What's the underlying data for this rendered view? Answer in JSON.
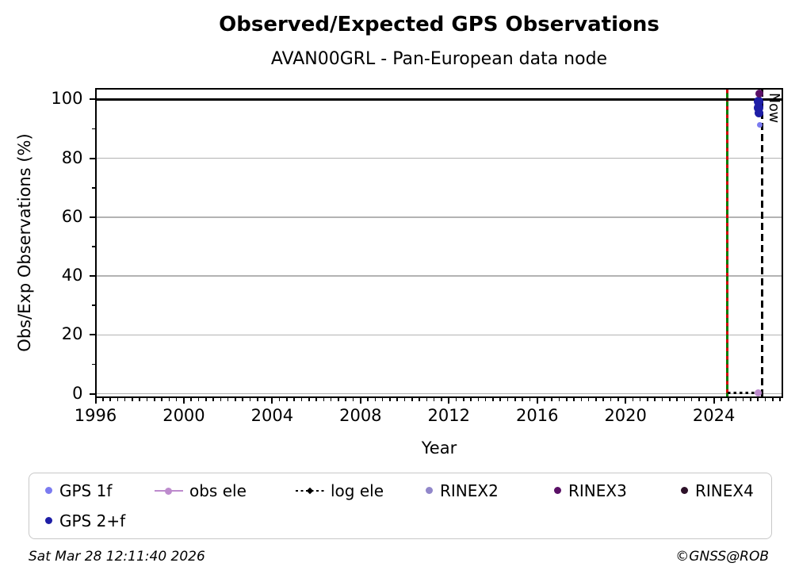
{
  "chart_data": {
    "type": "scatter",
    "title": "Observed/Expected GPS Observations",
    "subtitle": "AVAN00GRL - Pan-European data node",
    "xlabel": "Year",
    "ylabel": "Obs/Exp Observations (%)",
    "xlim": [
      1996,
      2027.1
    ],
    "ylim": [
      -1.2,
      103.6
    ],
    "xticks": [
      1996,
      2000,
      2004,
      2008,
      2012,
      2016,
      2020,
      2024
    ],
    "x_minor_step_years": 0.3333,
    "yticks": [
      0,
      20,
      40,
      60,
      80,
      100
    ],
    "y_minor_ticks": [
      10,
      30,
      50,
      70,
      90
    ],
    "grid": "horizontal",
    "grid_color": "#b3b3b3",
    "legend_position": "bottom",
    "series": [
      {
        "name": "GPS 1f",
        "color": "#7b7bf0",
        "marker": "dot",
        "points": [
          {
            "x": 2026.08,
            "y": 91.3,
            "size": 7
          }
        ]
      },
      {
        "name": "GPS 2+f",
        "color": "#1e1ea6",
        "marker": "dot",
        "points": [
          {
            "x": 2026.04,
            "y": 99.2,
            "size": 12
          },
          {
            "x": 2026.02,
            "y": 97.2,
            "size": 12
          },
          {
            "x": 2026.05,
            "y": 95.4,
            "size": 11
          }
        ]
      },
      {
        "name": "obs ele",
        "color": "#bd8bcd",
        "marker": "line-dot",
        "points": [
          {
            "x": 2026.0,
            "y": 0.4,
            "size": 9
          }
        ]
      },
      {
        "name": "log ele",
        "color": "#000000",
        "marker": "dotted-line",
        "points": []
      },
      {
        "name": "RINEX2",
        "color": "#9187ca",
        "marker": "dot",
        "points": []
      },
      {
        "name": "RINEX3",
        "color": "#5a1066",
        "marker": "dot",
        "points": [
          {
            "x": 2026.05,
            "y": 102.1,
            "size": 10
          }
        ]
      },
      {
        "name": "RINEX4",
        "color": "#2d1129",
        "marker": "dot",
        "points": []
      }
    ],
    "annotations": {
      "hline_100": {
        "y": 100,
        "color": "#000000",
        "thickness": 2.5
      },
      "green_line": {
        "x": 2024.6,
        "color": "#007d00",
        "dash_overlay_color": "#d40000"
      },
      "now_line": {
        "x": 2026.19,
        "label": "Now",
        "color": "#000000",
        "style": "dashed"
      },
      "log_ele_segment": {
        "y": 0.3,
        "x_start": 2024.62,
        "x_end": 2025.88,
        "color": "#000000",
        "style": "dotted"
      }
    }
  },
  "legend": {
    "rows": [
      [
        {
          "label": "GPS 1f",
          "marker": "dot",
          "color": "#7b7bf0"
        },
        {
          "label": "obs ele",
          "marker": "line-dot",
          "color": "#bd8bcd"
        },
        {
          "label": "log ele",
          "marker": "dotted-line",
          "color": "#000000"
        },
        {
          "label": "RINEX2",
          "marker": "dot",
          "color": "#9187ca"
        },
        {
          "label": "RINEX3",
          "marker": "dot",
          "color": "#5a1066"
        },
        {
          "label": "RINEX4",
          "marker": "dot",
          "color": "#2d1129"
        }
      ],
      [
        {
          "label": "GPS 2+f",
          "marker": "dot",
          "color": "#1e1ea6"
        }
      ]
    ]
  },
  "footer": {
    "timestamp": "Sat Mar 28 12:11:40 2026",
    "credit": "©GNSS@ROB"
  }
}
